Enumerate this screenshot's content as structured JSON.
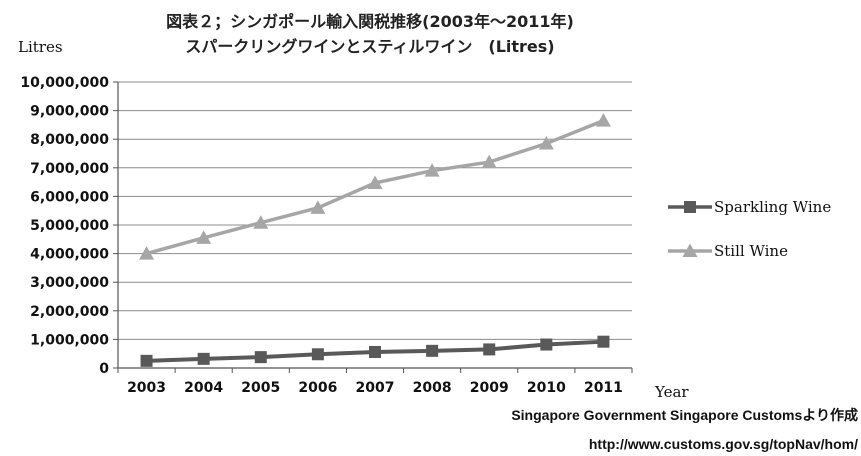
{
  "chart_data": {
    "type": "line",
    "title": "図表２；シンガポール輸入関税推移(2003年～2011年)",
    "subtitle": "スパークリングワインとスティルワイン　(Litres)",
    "ylabel": "Litres",
    "xlabel": "Year",
    "x": [
      "2003",
      "2004",
      "2005",
      "2006",
      "2007",
      "2008",
      "2009",
      "2010",
      "2011"
    ],
    "ylim": [
      0,
      10000000
    ],
    "yticks": [
      "0",
      "1,000,000",
      "2,000,000",
      "3,000,000",
      "4,000,000",
      "5,000,000",
      "6,000,000",
      "7,000,000",
      "8,000,000",
      "9,000,000",
      "10,000,000"
    ],
    "grid": true,
    "legend_position": "right",
    "series": [
      {
        "name": "Sparkling Wine",
        "marker": "square",
        "color": "#595959",
        "values": [
          250000,
          320000,
          380000,
          480000,
          560000,
          600000,
          650000,
          820000,
          920000
        ]
      },
      {
        "name": "Still Wine",
        "marker": "triangle",
        "color": "#a6a6a6",
        "values": [
          4000000,
          4550000,
          5080000,
          5600000,
          6470000,
          6900000,
          7200000,
          7850000,
          8650000
        ]
      }
    ]
  },
  "source": {
    "line1": "Singapore Government Singapore Customsより作成",
    "line2": "http://www.customs.gov.sg/topNav/hom/"
  }
}
